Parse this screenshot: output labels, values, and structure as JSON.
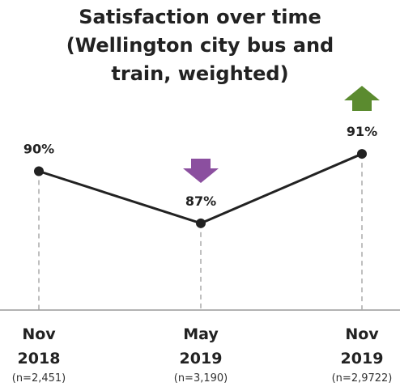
{
  "chart_data": {
    "type": "line",
    "title": "Satisfaction over time (Wellington city bus and train, weighted)",
    "categories": [
      "Nov 2018",
      "May 2019",
      "Nov 2019"
    ],
    "sample_sizes": [
      "(n=2,451)",
      "(n=3,190)",
      "(n=2,9722)"
    ],
    "values": [
      90,
      87,
      91
    ],
    "value_labels": [
      "90%",
      "87%",
      "91%"
    ],
    "color": "#222222",
    "ylim": [
      82,
      98
    ]
  }
}
